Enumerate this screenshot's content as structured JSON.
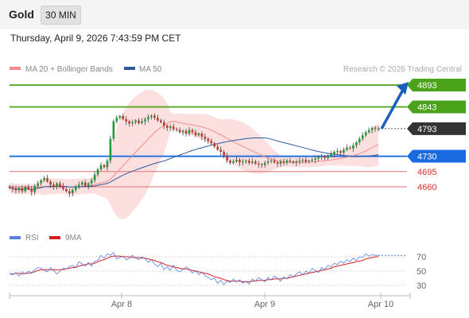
{
  "header": {
    "symbol": "Gold",
    "timeframe": "30 MIN",
    "datetime": "Thursday, April 9, 2026 7:43:59 PM CET"
  },
  "legend": {
    "ma20_label": "MA 20 + Bollinger Bands",
    "ma50_label": "MA 50",
    "ma20_color": "#f28b8b",
    "ma50_color": "#2e5a9c",
    "credit": "Research © 2026 Trading Central"
  },
  "rsi_legend": {
    "rsi_label": "RSI",
    "ma9_label": "9MA",
    "rsi_color": "#5b7fe0",
    "ma9_color": "#d62020"
  },
  "chart_data": [
    {
      "type": "candlestick",
      "x_ticks": [
        "Apr 8",
        "Apr 9",
        "Apr 10"
      ],
      "levels": [
        {
          "label": "4893",
          "value": 4893,
          "kind": "resistance",
          "color": "#4aa31a"
        },
        {
          "label": "4843",
          "value": 4843,
          "kind": "resistance",
          "color": "#4aa31a"
        },
        {
          "label": "4793",
          "value": 4793,
          "kind": "last_price",
          "color": "#333333"
        },
        {
          "label": "4730",
          "value": 4730,
          "kind": "pivot",
          "color": "#1a6be0"
        },
        {
          "label": "4695",
          "value": 4695,
          "kind": "support",
          "color": "#e07070"
        },
        {
          "label": "4660",
          "value": 4660,
          "kind": "support",
          "color": "#e07070"
        }
      ],
      "arrow": {
        "from": 4793,
        "to": 4893,
        "direction": "up"
      },
      "close": [
        4658,
        4655,
        4652,
        4657,
        4650,
        4660,
        4655,
        4648,
        4662,
        4668,
        4675,
        4680,
        4672,
        4665,
        4660,
        4668,
        4662,
        4655,
        4650,
        4645,
        4653,
        4660,
        4665,
        4670,
        4662,
        4668,
        4675,
        4688,
        4700,
        4710,
        4705,
        4720,
        4770,
        4810,
        4818,
        4822,
        4815,
        4810,
        4805,
        4808,
        4812,
        4806,
        4810,
        4815,
        4820,
        4823,
        4818,
        4812,
        4808,
        4800,
        4795,
        4798,
        4792,
        4790,
        4785,
        4788,
        4782,
        4790,
        4785,
        4778,
        4782,
        4775,
        4770,
        4765,
        4760,
        4752,
        4745,
        4740,
        4732,
        4720,
        4715,
        4718,
        4722,
        4716,
        4718,
        4720,
        4715,
        4718,
        4713,
        4712,
        4710,
        4715,
        4718,
        4720,
        4716,
        4713,
        4718,
        4715,
        4720,
        4718,
        4715,
        4718,
        4720,
        4722,
        4718,
        4720,
        4722,
        4725,
        4728,
        4730,
        4726,
        4730,
        4735,
        4740,
        4742,
        4738,
        4745,
        4750,
        4748,
        4755,
        4762,
        4770,
        4778,
        4785,
        4790,
        4795,
        4793,
        4793
      ]
    },
    {
      "type": "line",
      "title": "RSI",
      "y_ticks": [
        70,
        50,
        30
      ],
      "ylim": [
        20,
        90
      ],
      "series": [
        {
          "name": "RSI",
          "values": [
            47,
            45,
            48,
            43,
            49,
            46,
            50,
            47,
            52,
            55,
            54,
            51,
            49,
            55,
            51,
            46,
            50,
            54,
            53,
            56,
            58,
            55,
            63,
            60,
            57,
            62,
            57,
            64,
            65,
            72,
            68,
            74,
            72,
            76,
            67,
            69,
            71,
            66,
            68,
            72,
            68,
            66,
            70,
            67,
            62,
            66,
            60,
            56,
            61,
            52,
            56,
            51,
            58,
            51,
            49,
            52,
            56,
            53,
            47,
            51,
            45,
            48,
            44,
            41,
            38,
            40,
            33,
            37,
            31,
            36,
            34,
            39,
            35,
            38,
            33,
            36,
            32,
            39,
            36,
            41,
            38,
            35,
            41,
            38,
            43,
            40,
            36,
            42,
            39,
            45,
            42,
            46,
            49,
            45,
            50,
            47,
            54,
            51,
            48,
            55,
            52,
            58,
            56,
            61,
            59,
            64,
            61,
            66,
            63,
            68,
            65,
            70,
            69,
            74,
            71,
            73,
            72,
            72
          ]
        },
        {
          "name": "9MA",
          "values": [
            46,
            46,
            47,
            47,
            46,
            47,
            47,
            48,
            49,
            51,
            52,
            52,
            52,
            52,
            52,
            52,
            52,
            52,
            53,
            54,
            55,
            55,
            57,
            58,
            59,
            60,
            60,
            61,
            63,
            65,
            66,
            68,
            70,
            71,
            71,
            71,
            70,
            70,
            70,
            69,
            69,
            69,
            68,
            68,
            67,
            66,
            65,
            63,
            62,
            60,
            58,
            57,
            56,
            55,
            54,
            53,
            53,
            52,
            51,
            50,
            49,
            48,
            47,
            46,
            44,
            42,
            41,
            40,
            38,
            37,
            36,
            36,
            36,
            36,
            35,
            35,
            35,
            36,
            36,
            37,
            37,
            37,
            38,
            38,
            39,
            39,
            39,
            40,
            40,
            41,
            42,
            43,
            44,
            45,
            46,
            47,
            48,
            49,
            50,
            51,
            52,
            53,
            54,
            56,
            57,
            58,
            59,
            60,
            61,
            62,
            63,
            64,
            65,
            67,
            68,
            69,
            70,
            70
          ]
        }
      ]
    }
  ]
}
